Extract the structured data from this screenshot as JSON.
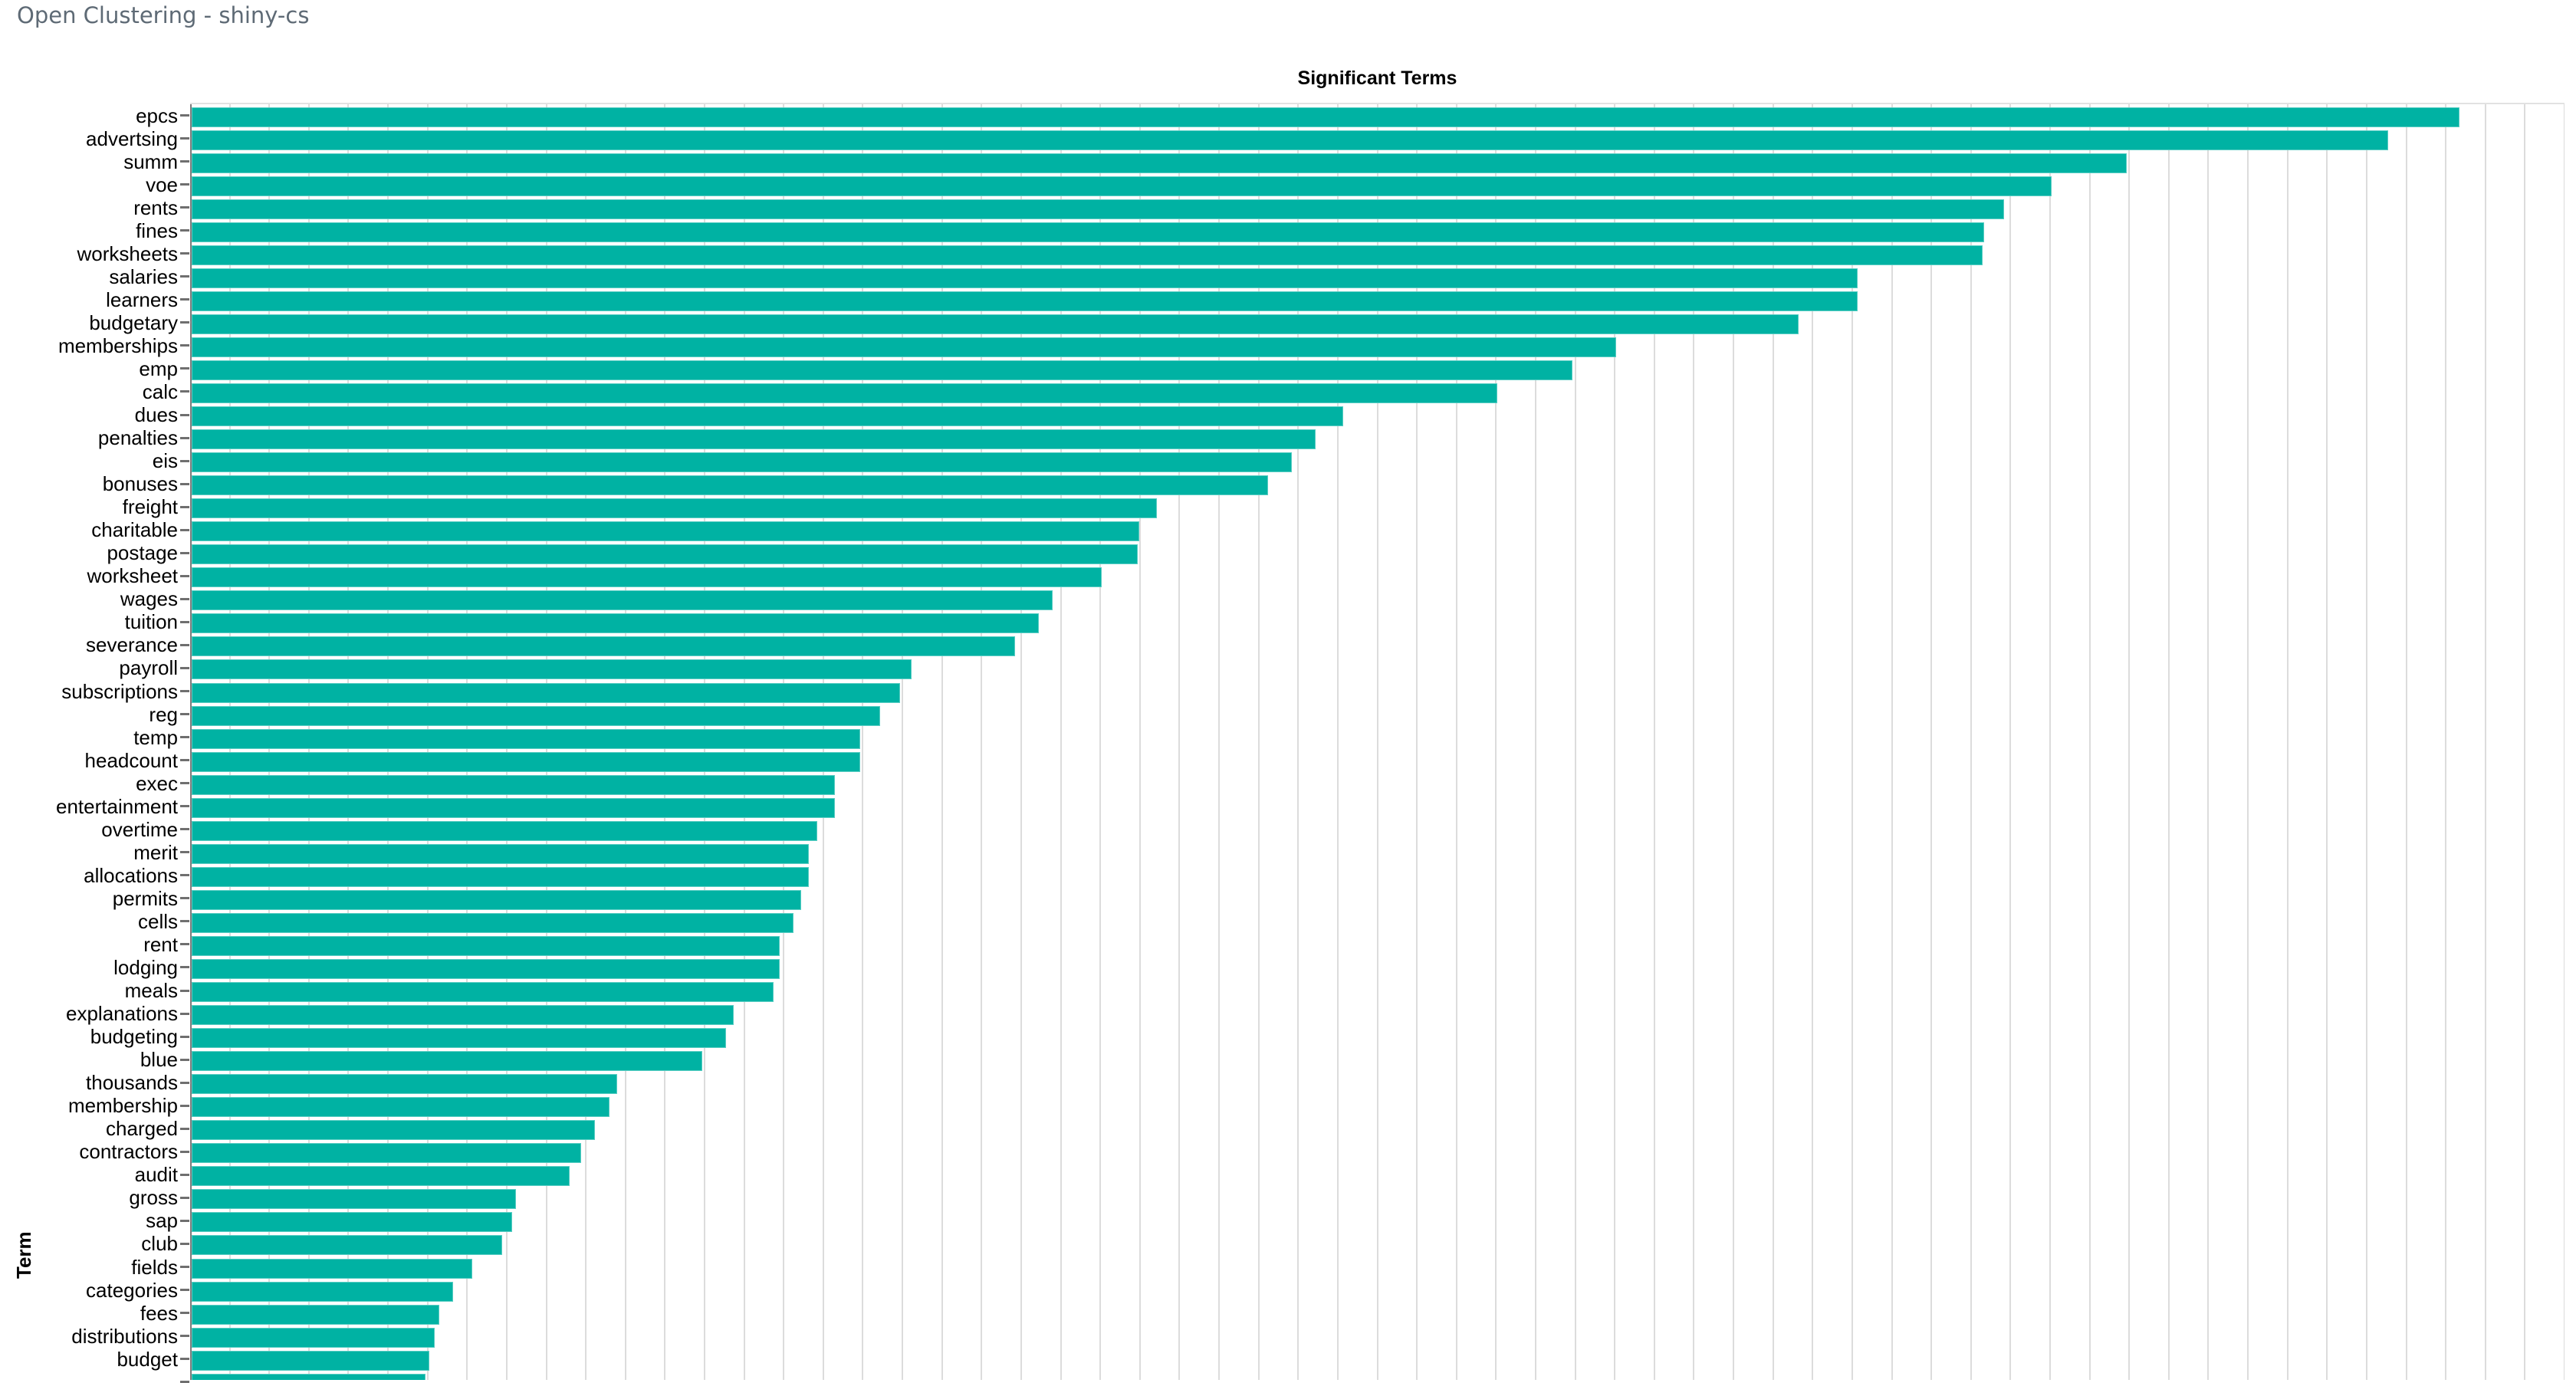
{
  "page": {
    "app_title": "Open Clustering - shiny-cs"
  },
  "chart_data": {
    "type": "bar",
    "orientation": "horizontal",
    "title": "Significant Terms",
    "xlabel": "",
    "ylabel": "Term",
    "legend": false,
    "grid": true,
    "xlim": [
      0,
      60
    ],
    "x_axis_labels_visible": false,
    "bottom_cut_off": true,
    "bar_color": "#00b2a3",
    "gridline_color": "#dcdcdc",
    "axis_color": "#7c7c7c",
    "categories": [
      "epcs",
      "advertsing",
      "summ",
      "voe",
      "rents",
      "fines",
      "worksheets",
      "salaries",
      "learners",
      "budgetary",
      "memberships",
      "emp",
      "calc",
      "dues",
      "penalties",
      "eis",
      "bonuses",
      "freight",
      "charitable",
      "postage",
      "worksheet",
      "wages",
      "tuition",
      "severance",
      "payroll",
      "subscriptions",
      "reg",
      "temp",
      "headcount",
      "exec",
      "entertainment",
      "overtime",
      "merit",
      "allocations",
      "permits",
      "cells",
      "rent",
      "lodging",
      "meals",
      "explanations",
      "budgeting",
      "blue",
      "thousands",
      "membership",
      "charged",
      "contractors",
      "audit",
      "gross",
      "sap",
      "club",
      "fields",
      "categories",
      "fees",
      "distributions",
      "budget",
      ""
    ],
    "values": [
      57.3,
      55.5,
      48.9,
      47.0,
      45.8,
      45.3,
      45.25,
      42.1,
      42.1,
      40.6,
      36.0,
      34.9,
      33.0,
      29.1,
      28.4,
      27.8,
      27.2,
      24.4,
      23.95,
      23.9,
      23.0,
      21.75,
      21.4,
      20.8,
      18.2,
      17.9,
      17.4,
      16.9,
      16.9,
      16.25,
      16.25,
      15.8,
      15.6,
      15.6,
      15.4,
      15.2,
      14.85,
      14.85,
      14.7,
      13.7,
      13.5,
      12.9,
      10.75,
      10.55,
      10.2,
      9.85,
      9.55,
      8.2,
      8.1,
      7.85,
      7.1,
      6.6,
      6.25,
      6.15,
      6.0,
      5.9
    ],
    "values_unit": "gridline intervals (axis tick labels not visible in view)"
  }
}
